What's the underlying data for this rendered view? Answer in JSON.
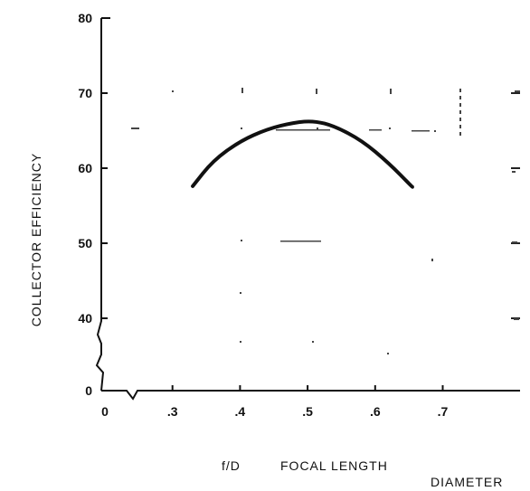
{
  "chart_data": {
    "type": "line",
    "xlabel_prefix": "f/D",
    "xlabel_main": "FOCAL LENGTH",
    "xlabel_sub": "DIAMETER",
    "ylabel": "COLLECTOR EFFICIENCY",
    "x_ticks": [
      {
        "value": 0.2,
        "label": "0"
      },
      {
        "value": 0.3,
        "label": ".3"
      },
      {
        "value": 0.4,
        "label": ".4"
      },
      {
        "value": 0.5,
        "label": ".5"
      },
      {
        "value": 0.6,
        "label": ".6"
      },
      {
        "value": 0.7,
        "label": ".7"
      }
    ],
    "y_ticks": [
      {
        "value": 0,
        "label": "0"
      },
      {
        "value": 40,
        "label": "40"
      },
      {
        "value": 50,
        "label": "50"
      },
      {
        "value": 60,
        "label": "60"
      },
      {
        "value": 70,
        "label": "70"
      },
      {
        "value": 80,
        "label": "80"
      }
    ],
    "xlim": [
      0.2,
      0.8
    ],
    "ylim_display": [
      35,
      80
    ],
    "axis_break": true,
    "grid": false,
    "series": [
      {
        "x": [
          0.33,
          0.36,
          0.4,
          0.44,
          0.48,
          0.51,
          0.54,
          0.58,
          0.62,
          0.655
        ],
        "y": [
          57.6,
          61.0,
          63.6,
          65.2,
          66.1,
          66.3,
          65.6,
          63.7,
          60.7,
          57.5
        ]
      }
    ]
  }
}
